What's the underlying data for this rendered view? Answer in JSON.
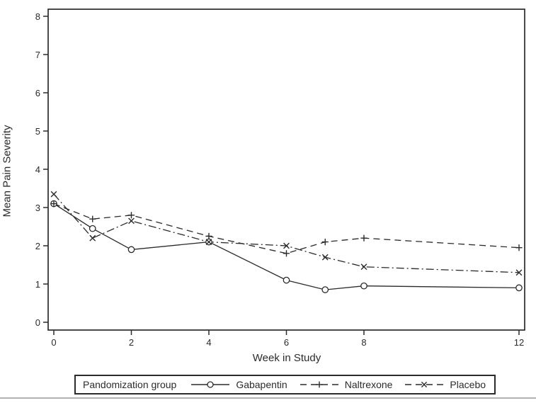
{
  "chart_data": {
    "type": "line",
    "title": "",
    "xlabel": "Week in Study",
    "ylabel": "Mean Pain Severity",
    "legend_title": "Pandomization group",
    "legend_position": "bottom",
    "grid": false,
    "x": [
      0,
      1,
      2,
      4,
      6,
      7,
      8,
      12
    ],
    "x_ticks": [
      0,
      2,
      4,
      6,
      8,
      12
    ],
    "y_ticks": [
      0,
      1,
      2,
      3,
      4,
      5,
      6,
      7,
      8
    ],
    "xlim": [
      -0.15,
      12.15
    ],
    "ylim": [
      -0.2,
      8.2
    ],
    "series": [
      {
        "name": "Gabapentin",
        "marker": "circle",
        "line_style": "solid",
        "values": [
          3.1,
          2.45,
          1.9,
          2.1,
          1.1,
          0.85,
          0.95,
          0.9
        ]
      },
      {
        "name": "Naltrexone",
        "marker": "plus",
        "line_style": "dashed",
        "values": [
          3.1,
          2.7,
          2.8,
          2.25,
          1.8,
          2.1,
          2.2,
          1.95
        ]
      },
      {
        "name": "Placebo",
        "marker": "x",
        "line_style": "dashdot",
        "values": [
          3.35,
          2.2,
          2.65,
          2.1,
          2.0,
          1.7,
          1.45,
          1.3
        ]
      }
    ],
    "ink_color": "#2b2b2b",
    "background_color": "#ffffff",
    "scan_artifact_color": "#b3b3b3"
  }
}
